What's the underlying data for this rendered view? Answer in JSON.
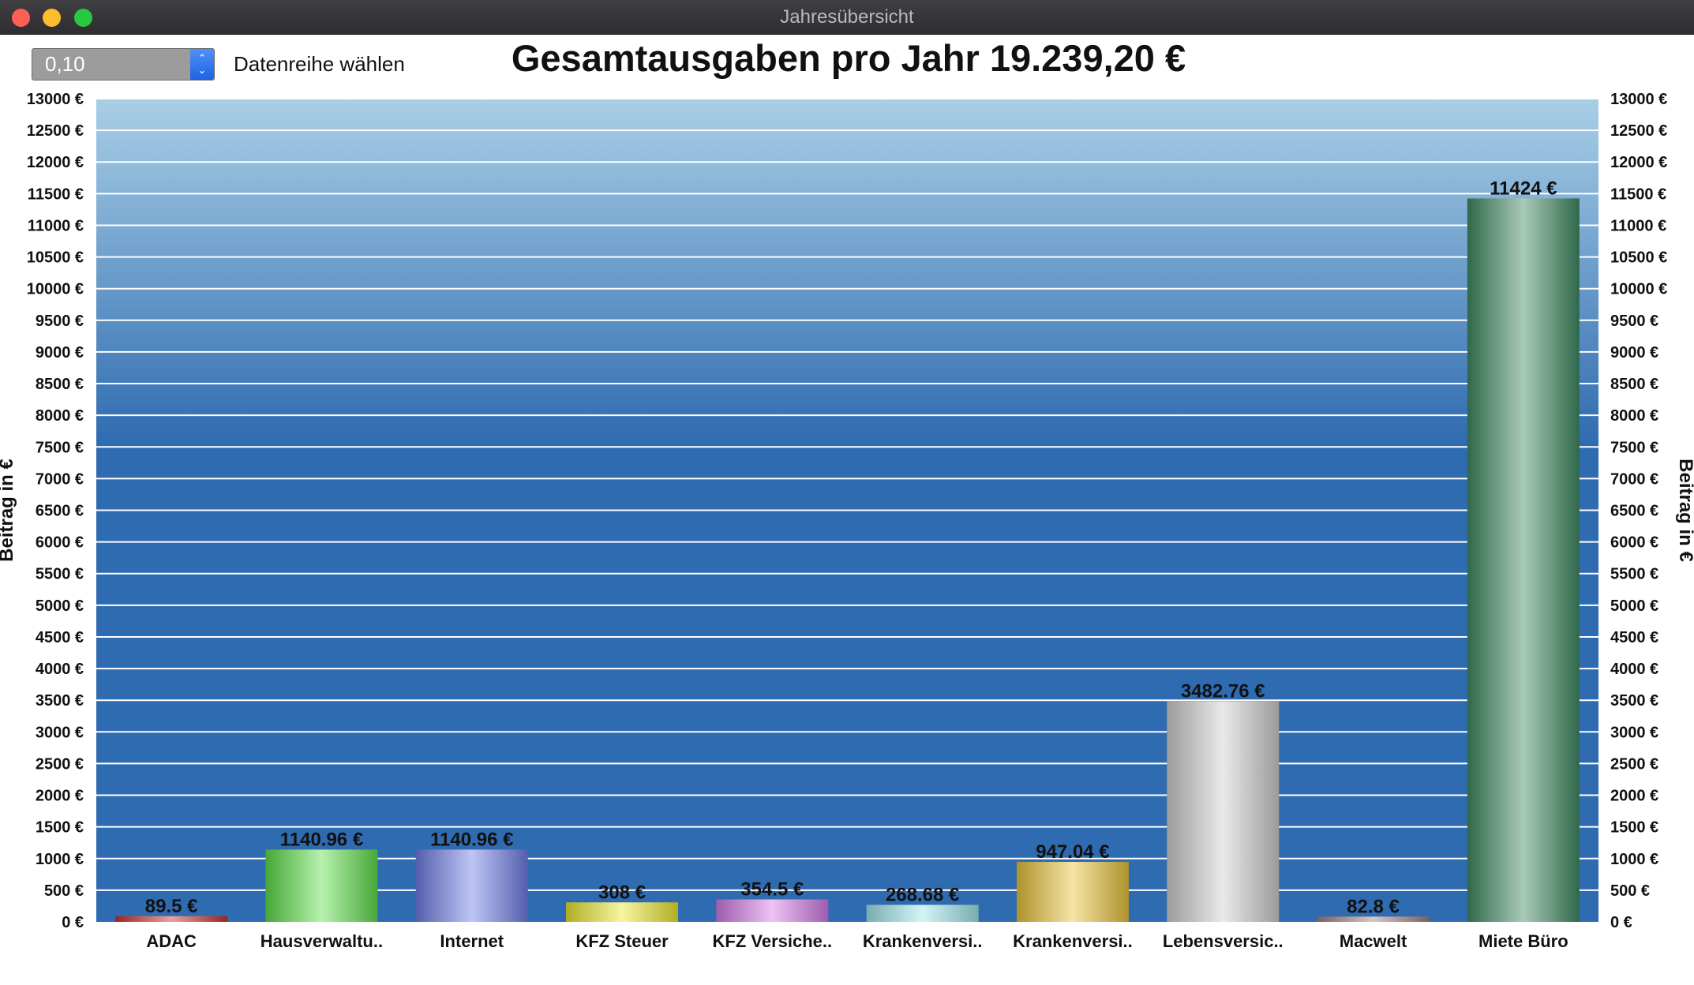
{
  "window": {
    "title": "Jahresübersicht"
  },
  "controls": {
    "spinner_value": "0,10",
    "select_label": "Datenreihe wählen"
  },
  "colors": {
    "plot_top": "#a9cfe6",
    "plot_bottom": "#2f6bb0",
    "grid": "#ffffff",
    "bars": [
      "#c9312c",
      "#5fe04a",
      "#6f7fe6",
      "#ece82e",
      "#d47ae6",
      "#9fe6ea",
      "#e8c23a",
      "#cfcfcf",
      "#a38080",
      "#3f8a62"
    ]
  },
  "chart_data": {
    "type": "bar",
    "title": "Gesamtausgaben pro Jahr 19.239,20 €",
    "ylabel_left": "Beitrag in €",
    "ylabel_right": "Beitrag in €",
    "ylim": [
      0,
      13000
    ],
    "ytick_step": 500,
    "ytick_suffix": " €",
    "grid": true,
    "categories": [
      "ADAC",
      "Hausverwaltu..",
      "Internet",
      "KFZ Steuer",
      "KFZ Versiche..",
      "Krankenversi..",
      "Krankenversi..",
      "Lebensversic..",
      "Macwelt",
      "Miete Büro"
    ],
    "values": [
      89.5,
      1140.96,
      1140.96,
      308,
      354.5,
      268.68,
      947.04,
      3482.76,
      82.8,
      11424
    ],
    "value_labels": [
      "89.5 €",
      "1140.96 €",
      "1140.96 €",
      "308 €",
      "354.5 €",
      "268.68 €",
      "947.04 €",
      "3482.76 €",
      "82.8 €",
      "11424 €"
    ]
  }
}
